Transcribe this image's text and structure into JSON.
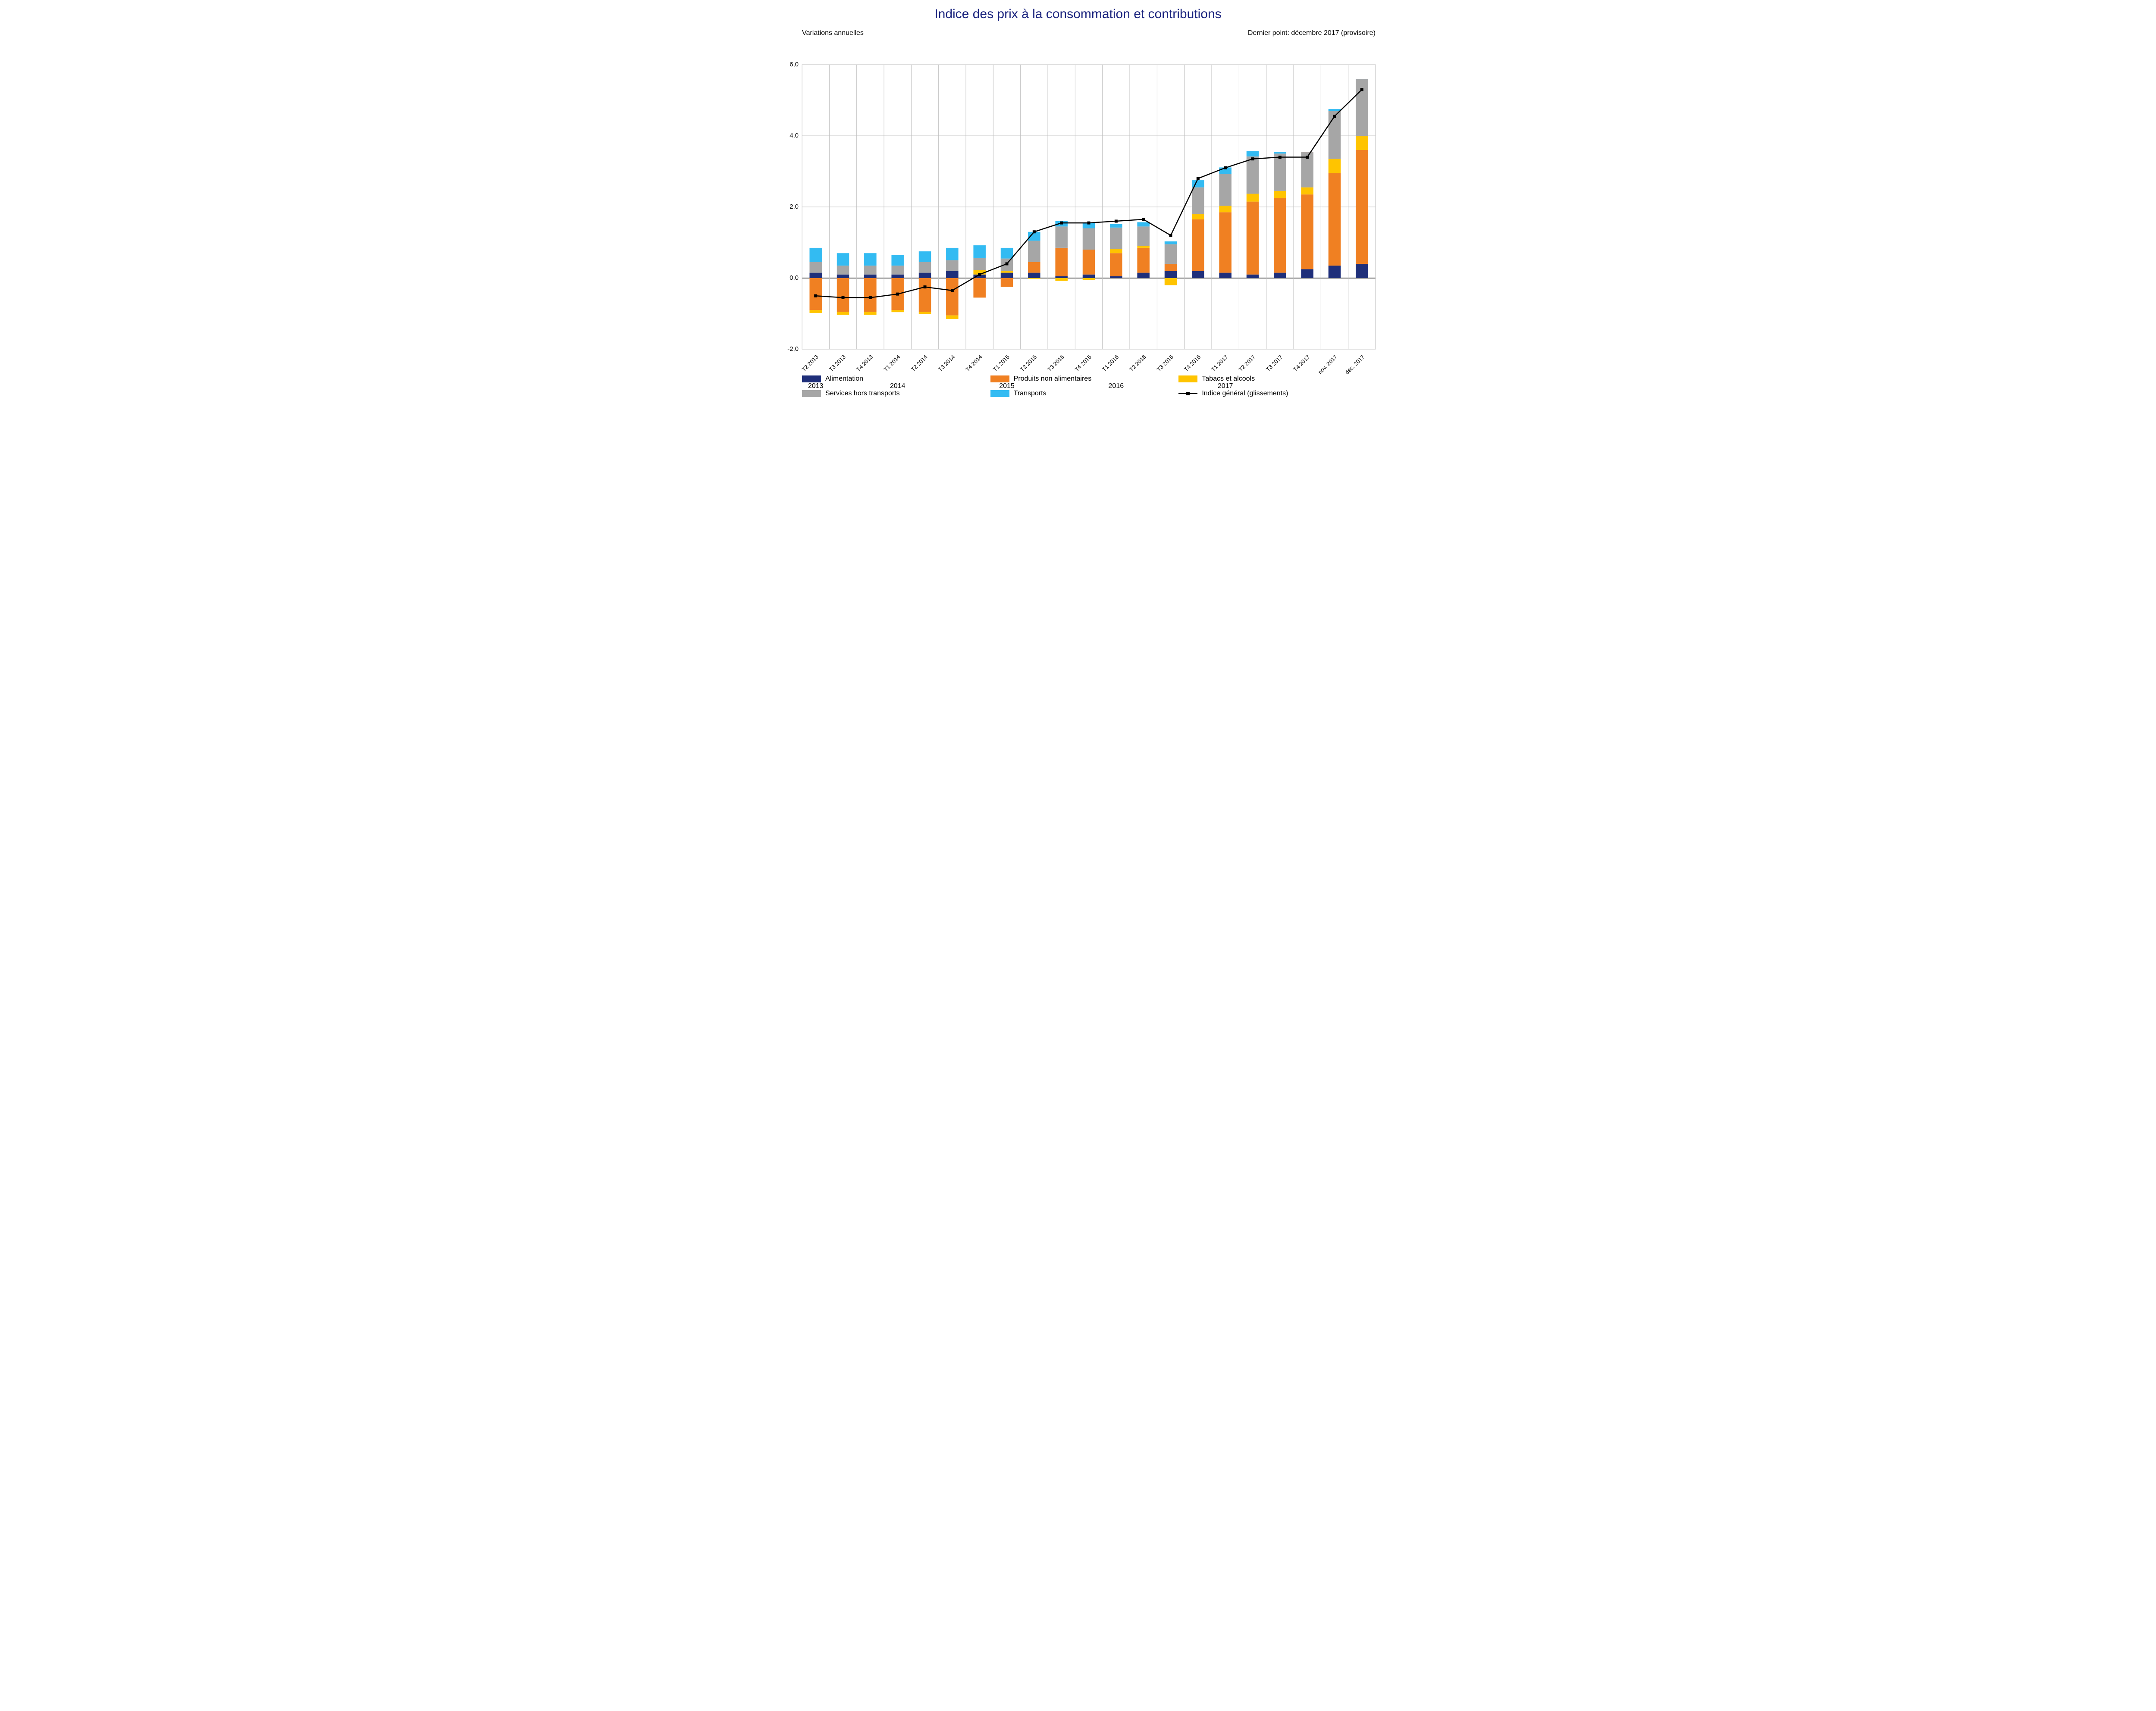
{
  "chart": {
    "type": "stacked-bar-with-line",
    "title": "Indice des prix à la consommation et contributions",
    "title_fontsize": 30,
    "title_color": "#1a237e",
    "subtitle_left": "Variations annuelles",
    "subtitle_right": "Dernier point: décembre 2017 (provisoire)",
    "background_color": "#ffffff",
    "grid_color": "#bfbfbf",
    "axis_color": "#000000",
    "font_family": "Arial",
    "axis_label_fontsize": 16,
    "ylim": [
      -2,
      6
    ],
    "ytick_step": 2,
    "yticks": [
      -2,
      0,
      2,
      4,
      6
    ],
    "bar_width_ratio": 0.45,
    "categories": [
      "T2 2013",
      "T3 2013",
      "T4 2013",
      "T1 2014",
      "T2 2014",
      "T3 2014",
      "T4 2014",
      "T1 2015",
      "T2 2015",
      "T3 2015",
      "T4 2015",
      "T1 2016",
      "T2 2016",
      "T3 2016",
      "T4 2016",
      "T1 2017",
      "T2 2017",
      "T3 2017",
      "T4 2017",
      "nov. 2017",
      "déc. 2017"
    ],
    "category_label_years": {
      "0": "2013",
      "3": "2014",
      "7": "2015",
      "11": "2016",
      "15": "2017"
    },
    "series": [
      {
        "name": "Alimentation",
        "color": "#1f2f7a",
        "values": [
          0.15,
          0.1,
          0.1,
          0.1,
          0.15,
          0.2,
          0.1,
          0.15,
          0.15,
          0.05,
          0.1,
          0.05,
          0.15,
          0.2,
          0.2,
          0.15,
          0.1,
          0.15,
          0.25,
          0.35,
          0.4
        ]
      },
      {
        "name": "Produits non alimentaires",
        "color": "#f08022",
        "values": [
          -0.9,
          -0.95,
          -0.95,
          -0.9,
          -0.95,
          -1.05,
          -0.55,
          -0.25,
          0.3,
          0.8,
          0.7,
          0.65,
          0.7,
          0.2,
          1.45,
          1.7,
          2.05,
          2.1,
          2.1,
          2.6,
          3.2
        ]
      },
      {
        "name": "Tabacs et alcools",
        "color": "#ffc400",
        "values": [
          -0.08,
          -0.08,
          -0.08,
          -0.06,
          -0.06,
          -0.1,
          0.12,
          0.05,
          -0.02,
          -0.08,
          -0.05,
          0.12,
          0.05,
          -0.2,
          0.15,
          0.18,
          0.22,
          0.2,
          0.2,
          0.4,
          0.4
        ]
      },
      {
        "name": "Services hors transports",
        "color": "#a6a6a6",
        "values": [
          0.3,
          0.25,
          0.25,
          0.25,
          0.3,
          0.3,
          0.35,
          0.35,
          0.6,
          0.6,
          0.6,
          0.6,
          0.55,
          0.55,
          0.75,
          0.9,
          1.05,
          1.05,
          1.0,
          1.35,
          1.6
        ]
      },
      {
        "name": "Transports",
        "color": "#33bbf2",
        "values": [
          0.4,
          0.35,
          0.35,
          0.3,
          0.3,
          0.35,
          0.35,
          0.3,
          0.25,
          0.15,
          0.15,
          0.1,
          0.12,
          0.08,
          0.2,
          0.18,
          0.15,
          0.05,
          0.0,
          0.05,
          0.0
        ]
      }
    ],
    "line": {
      "name": "Indice général (glissements)",
      "color": "#000000",
      "width": 2.5,
      "marker_style": "square",
      "marker_size": 7,
      "values": [
        -0.5,
        -0.55,
        -0.55,
        -0.45,
        -0.25,
        -0.35,
        0.1,
        0.4,
        1.3,
        1.55,
        1.55,
        1.6,
        1.65,
        1.2,
        2.8,
        3.1,
        3.35,
        3.4,
        3.4,
        4.55,
        5.3
      ]
    },
    "legend_position": "bottom",
    "legend_columns": 3
  }
}
